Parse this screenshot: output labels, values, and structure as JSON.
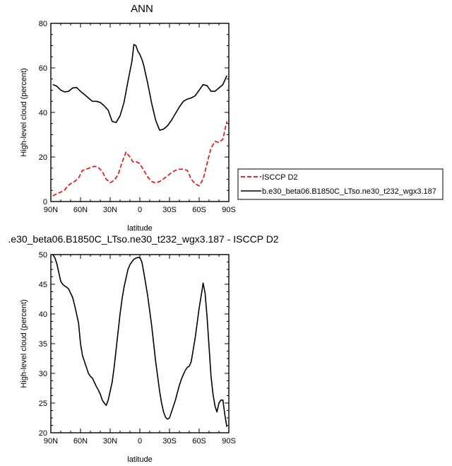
{
  "chart_data": [
    {
      "type": "line",
      "title": "ANN",
      "xlabel": "latitude",
      "ylabel": "High-level cloud (percent)",
      "xlim": [
        90,
        -90
      ],
      "ylim": [
        0,
        80
      ],
      "xticks": [
        90,
        60,
        30,
        0,
        -30,
        -60,
        -90
      ],
      "xtick_labels": [
        "90N",
        "60N",
        "30N",
        "0",
        "30S",
        "60S",
        "90S"
      ],
      "yticks": [
        0,
        20,
        40,
        60,
        80
      ],
      "ytick_labels": [
        "0",
        "20",
        "40",
        "60",
        "80"
      ],
      "legend": {
        "placement": "right"
      },
      "series": [
        {
          "name": "ISCCP D2",
          "color": "#ff0000",
          "dash": "dashed",
          "x": [
            88,
            84,
            80,
            76,
            73,
            70,
            66,
            62,
            58,
            54,
            50,
            46,
            42,
            38,
            34,
            30,
            26,
            22,
            18,
            14,
            10,
            7,
            4,
            0,
            -4,
            -8,
            -12,
            -16,
            -20,
            -24,
            -28,
            -32,
            -36,
            -40,
            -44,
            -48,
            -52,
            -56,
            -60,
            -64,
            -68,
            -72,
            -76,
            -80,
            -84,
            -88
          ],
          "y": [
            2.5,
            3.5,
            4.2,
            5.2,
            7.0,
            8.0,
            9.0,
            10.5,
            14.0,
            14.5,
            15.2,
            15.8,
            15.3,
            13.5,
            10.0,
            8.5,
            9.5,
            12.0,
            17.5,
            22.2,
            20.0,
            17.8,
            18.0,
            17.0,
            14.0,
            11.0,
            9.0,
            8.3,
            9.0,
            10.2,
            11.5,
            13.0,
            14.0,
            14.5,
            14.5,
            14.0,
            10.0,
            8.0,
            7.0,
            10.0,
            17.0,
            24.0,
            27.0,
            26.5,
            28.0,
            36.0
          ]
        },
        {
          "name": "b.e30_beta06.B1850C_LTso.ne30_t232_wgx3.187",
          "color": "#000000",
          "dash": "solid",
          "x": [
            88,
            84,
            80,
            76,
            72,
            68,
            64,
            60,
            56,
            52,
            48,
            44,
            40,
            36,
            32,
            28,
            24,
            20,
            16,
            12,
            8,
            6,
            4,
            2,
            0,
            -2,
            -4,
            -8,
            -12,
            -16,
            -20,
            -24,
            -28,
            -32,
            -36,
            -40,
            -44,
            -48,
            -52,
            -56,
            -60,
            -64,
            -68,
            -72,
            -76,
            -80,
            -84,
            -88
          ],
          "y": [
            52.5,
            51.8,
            50.0,
            49.2,
            49.5,
            51.0,
            51.2,
            49.5,
            48.0,
            46.5,
            45.0,
            45.0,
            44.5,
            43.0,
            41.0,
            36.0,
            35.5,
            38.5,
            44.5,
            54.0,
            63.0,
            70.5,
            70.0,
            67.5,
            66.0,
            64.0,
            61.0,
            53.0,
            44.0,
            36.5,
            32.0,
            32.5,
            34.0,
            36.5,
            39.5,
            42.5,
            45.0,
            46.0,
            46.5,
            47.5,
            50.0,
            52.5,
            52.0,
            49.5,
            49.5,
            51.0,
            52.5,
            56.5
          ]
        }
      ]
    },
    {
      "type": "line",
      "title": ".e30_beta06.B1850C_LTso.ne30_t232_wgx3.187 - ISCCP D2",
      "xlabel": "latitude",
      "ylabel": "High-level cloud (percent)",
      "xlim": [
        90,
        -90
      ],
      "ylim": [
        20,
        50
      ],
      "xticks": [
        90,
        60,
        30,
        0,
        -30,
        -60,
        -90
      ],
      "xtick_labels": [
        "90N",
        "60N",
        "30N",
        "0",
        "30S",
        "60S",
        "90S"
      ],
      "yticks": [
        20,
        25,
        30,
        35,
        40,
        45,
        50
      ],
      "ytick_labels": [
        "20",
        "25",
        "30",
        "35",
        "40",
        "45",
        "50"
      ],
      "series": [
        {
          "color": "#000000",
          "dash": "solid",
          "x": [
            88,
            86,
            84,
            82,
            80,
            78,
            76,
            74,
            72,
            70,
            68,
            66,
            64,
            62,
            60,
            58,
            56,
            54,
            52,
            50,
            48,
            46,
            44,
            42,
            40,
            38,
            36,
            34,
            32,
            30,
            28,
            26,
            24,
            22,
            20,
            18,
            16,
            14,
            12,
            10,
            8,
            6,
            4,
            2,
            0,
            -2,
            -4,
            -6,
            -8,
            -10,
            -12,
            -14,
            -16,
            -18,
            -20,
            -22,
            -24,
            -26,
            -28,
            -30,
            -32,
            -34,
            -36,
            -38,
            -40,
            -42,
            -44,
            -46,
            -48,
            -50,
            -52,
            -54,
            -56,
            -58,
            -60,
            -62,
            -64,
            -66,
            -68,
            -70,
            -72,
            -74,
            -76,
            -78,
            -80,
            -82,
            -84,
            -86,
            -88
          ],
          "y": [
            50.0,
            49.5,
            48.5,
            47.0,
            45.5,
            45.0,
            44.7,
            44.5,
            44.2,
            43.5,
            42.8,
            41.5,
            40.0,
            38.5,
            35.0,
            33.0,
            32.0,
            31.0,
            30.0,
            29.5,
            29.2,
            28.5,
            27.8,
            27.2,
            26.5,
            25.5,
            25.0,
            24.6,
            25.5,
            27.0,
            28.5,
            31.0,
            34.0,
            37.0,
            40.0,
            42.5,
            44.5,
            46.0,
            47.5,
            48.3,
            48.8,
            49.2,
            49.4,
            49.5,
            49.5,
            48.8,
            47.0,
            45.0,
            43.0,
            40.5,
            38.0,
            35.0,
            32.0,
            29.5,
            27.0,
            25.0,
            23.5,
            22.6,
            22.3,
            22.5,
            23.5,
            24.5,
            25.5,
            26.8,
            28.0,
            29.0,
            29.8,
            30.5,
            31.0,
            31.2,
            32.0,
            34.0,
            36.0,
            38.5,
            41.0,
            43.0,
            45.2,
            43.5,
            39.5,
            34.5,
            29.5,
            26.5,
            24.5,
            23.5,
            25.0,
            25.5,
            25.5,
            23.0,
            21.0
          ]
        }
      ]
    }
  ]
}
